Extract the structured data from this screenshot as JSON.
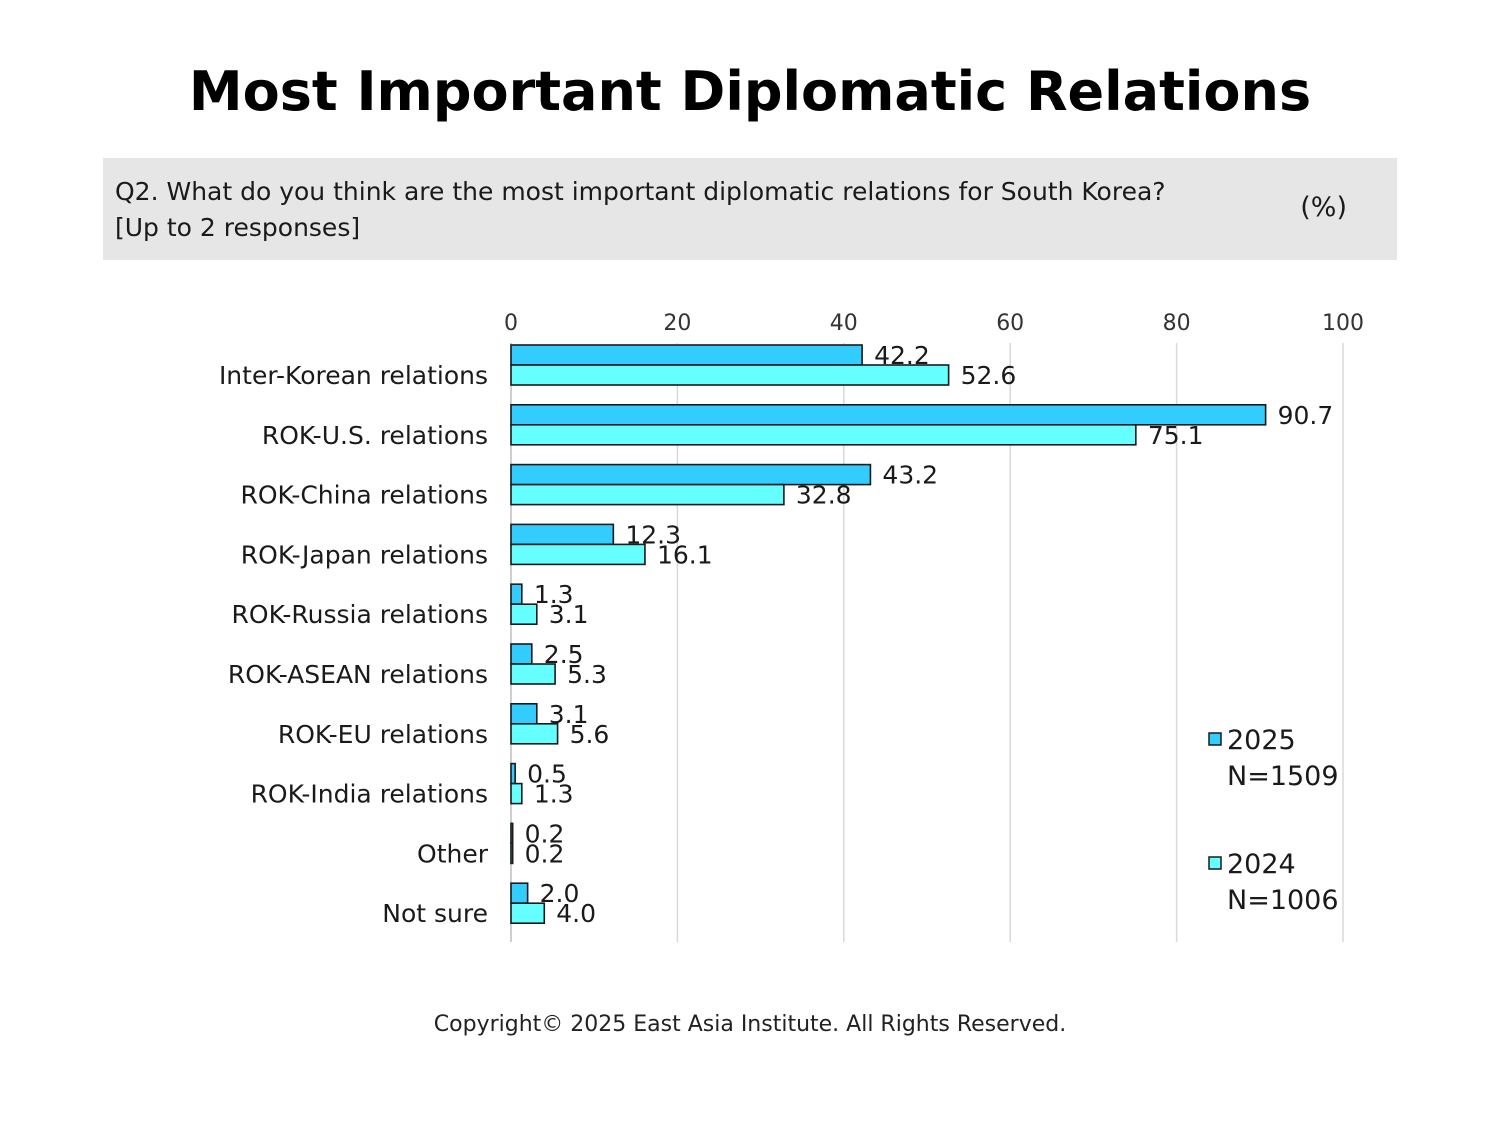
{
  "title": "Most Important Diplomatic Relations",
  "question": {
    "line1": "Q2. What do you think are the most important diplomatic relations for South Korea?",
    "line2": "[Up to 2 responses]",
    "unit": "(%)"
  },
  "copyright": "Copyright© 2025 East Asia Institute. All Rights Reserved.",
  "colors": {
    "series_2025": "#33ccff",
    "series_2024": "#66ffff",
    "bar_stroke": "#1a1a1a",
    "grid": "#d9d9d9"
  },
  "chart_data": {
    "type": "bar",
    "orientation": "horizontal",
    "categories": [
      "Inter-Korean relations",
      "ROK-U.S. relations",
      "ROK-China relations",
      "ROK-Japan relations",
      "ROK-Russia relations",
      "ROK-ASEAN relations",
      "ROK-EU relations",
      "ROK-India relations",
      "Other",
      "Not sure"
    ],
    "series": [
      {
        "name": "2025",
        "legend_note": "N=1509",
        "values": [
          42.2,
          90.7,
          43.2,
          12.3,
          1.3,
          2.5,
          3.1,
          0.5,
          0.2,
          2.0
        ],
        "labels": [
          "42.2",
          "90.7",
          "43.2",
          "12.3",
          "1.3",
          "2.5",
          "3.1",
          "0.5",
          "0.2",
          "2.0"
        ]
      },
      {
        "name": "2024",
        "legend_note": "N=1006",
        "values": [
          52.6,
          75.1,
          32.8,
          16.1,
          3.1,
          5.3,
          5.6,
          1.3,
          0.2,
          4.0
        ],
        "labels": [
          "52.6",
          "75.1",
          "32.8",
          "16.1",
          "3.1",
          "5.3",
          "5.6",
          "1.3",
          "0.2",
          "4.0"
        ]
      }
    ],
    "xlim": [
      0,
      100
    ],
    "xticks": [
      0,
      20,
      40,
      60,
      80,
      100
    ],
    "xtick_labels": [
      "0",
      "20",
      "40",
      "60",
      "80",
      "100"
    ],
    "grid": true,
    "axis_position": "top",
    "legend_position": "right"
  }
}
